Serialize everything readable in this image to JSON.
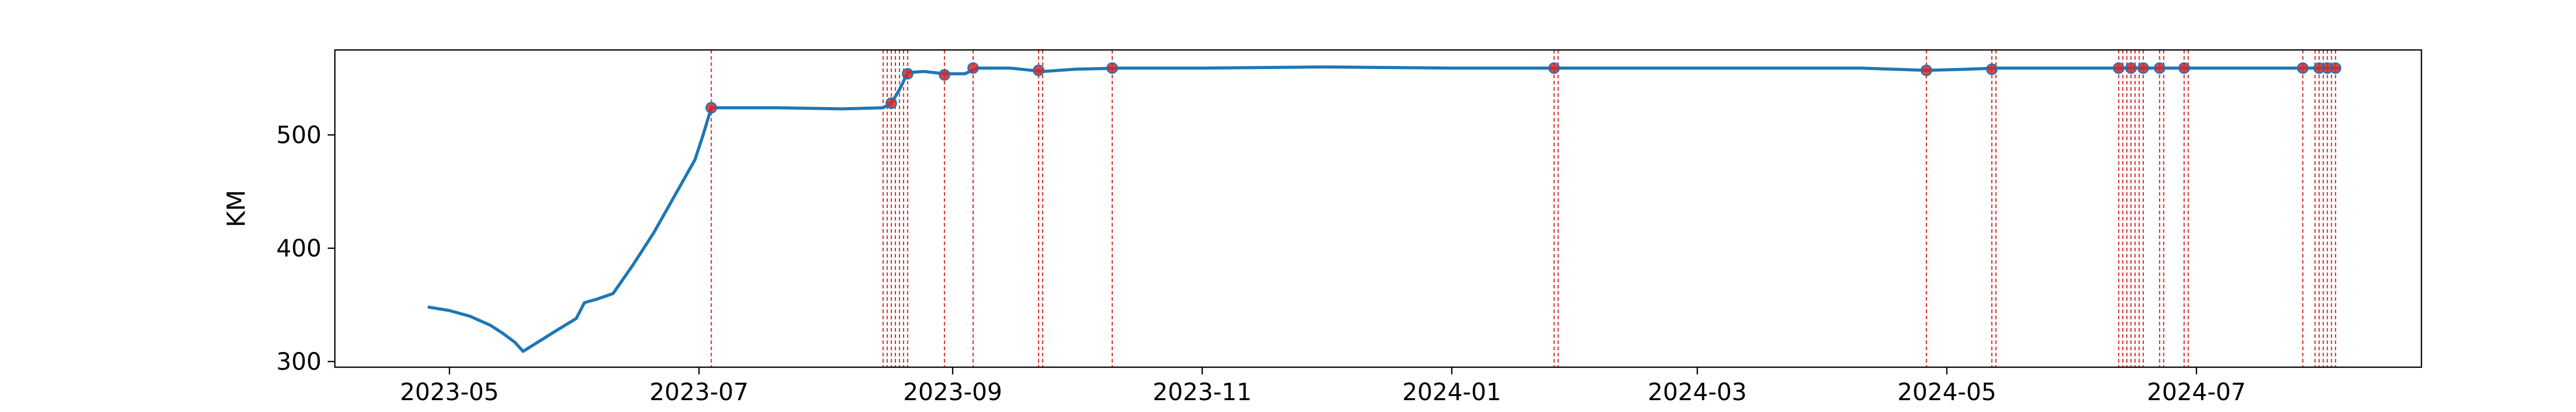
{
  "chart_data": {
    "type": "line",
    "title": "",
    "xlabel": "",
    "ylabel": "KM",
    "ylim": [
      295,
      575
    ],
    "xlim": [
      "2023-04-03",
      "2024-08-25"
    ],
    "grid": false,
    "legend": "none",
    "x_ticks": [
      "2023-05",
      "2023-07",
      "2023-09",
      "2023-11",
      "2024-01",
      "2024-03",
      "2024-05",
      "2024-07"
    ],
    "y_ticks": [
      300,
      400,
      500
    ],
    "colors": {
      "line": "#1f77b4",
      "events": "#d62728",
      "markers": "#d62728"
    },
    "series": [
      {
        "x": [
          "2023-04-26",
          "2023-05-01",
          "2023-05-06",
          "2023-05-11",
          "2023-05-14",
          "2023-05-17",
          "2023-05-19",
          "2023-05-23",
          "2023-05-27",
          "2023-06-01",
          "2023-06-03",
          "2023-06-06",
          "2023-06-10",
          "2023-06-15",
          "2023-06-20",
          "2023-06-25",
          "2023-06-30",
          "2023-07-02",
          "2023-07-04",
          "2023-07-20",
          "2023-08-05",
          "2023-08-15",
          "2023-08-17",
          "2023-08-19",
          "2023-08-21",
          "2023-08-25",
          "2023-08-30",
          "2023-09-04",
          "2023-09-07",
          "2023-09-15",
          "2023-09-23",
          "2023-10-01",
          "2023-10-12",
          "2023-11-01",
          "2023-12-01",
          "2024-01-01",
          "2024-01-27",
          "2024-02-15",
          "2024-03-15",
          "2024-04-10",
          "2024-04-26",
          "2024-05-06",
          "2024-05-13",
          "2024-06-01",
          "2024-06-13",
          "2024-06-18",
          "2024-06-22",
          "2024-06-29",
          "2024-07-15",
          "2024-07-29",
          "2024-08-02",
          "2024-08-05"
        ],
        "values": [
          348,
          345,
          340,
          332,
          325,
          317,
          309,
          318,
          327,
          338,
          352,
          355,
          360,
          386,
          414,
          446,
          478,
          500,
          524,
          524,
          523,
          524,
          528,
          540,
          555,
          556,
          554,
          554,
          559,
          559,
          556,
          558,
          559,
          559,
          560,
          559,
          559,
          559,
          559,
          559,
          557,
          558,
          559,
          559,
          559,
          559,
          559,
          559,
          559,
          559,
          559,
          559
        ]
      }
    ],
    "event_dates": [
      "2023-07-04",
      "2023-08-15",
      "2023-08-16",
      "2023-08-17",
      "2023-08-18",
      "2023-08-19",
      "2023-08-20",
      "2023-08-21",
      "2023-08-30",
      "2023-09-06",
      "2023-09-22",
      "2023-09-23",
      "2023-10-10",
      "2024-01-26",
      "2024-01-27",
      "2024-04-26",
      "2024-05-12",
      "2024-05-13",
      "2024-06-12",
      "2024-06-13",
      "2024-06-14",
      "2024-06-15",
      "2024-06-16",
      "2024-06-17",
      "2024-06-18",
      "2024-06-22",
      "2024-06-23",
      "2024-06-28",
      "2024-06-29",
      "2024-07-27",
      "2024-07-30",
      "2024-07-31",
      "2024-08-01",
      "2024-08-02",
      "2024-08-03",
      "2024-08-04"
    ],
    "markers": [
      {
        "x": "2023-07-04",
        "y": 524
      },
      {
        "x": "2023-08-17",
        "y": 528
      },
      {
        "x": "2023-08-21",
        "y": 554
      },
      {
        "x": "2023-08-30",
        "y": 553
      },
      {
        "x": "2023-09-06",
        "y": 559
      },
      {
        "x": "2023-09-22",
        "y": 557
      },
      {
        "x": "2023-10-10",
        "y": 559
      },
      {
        "x": "2024-01-26",
        "y": 559
      },
      {
        "x": "2024-04-26",
        "y": 557
      },
      {
        "x": "2024-05-12",
        "y": 558
      },
      {
        "x": "2024-06-12",
        "y": 559
      },
      {
        "x": "2024-06-15",
        "y": 559
      },
      {
        "x": "2024-06-18",
        "y": 559
      },
      {
        "x": "2024-06-22",
        "y": 559
      },
      {
        "x": "2024-06-28",
        "y": 559
      },
      {
        "x": "2024-07-27",
        "y": 559
      },
      {
        "x": "2024-07-31",
        "y": 559
      },
      {
        "x": "2024-08-02",
        "y": 559
      },
      {
        "x": "2024-08-04",
        "y": 559
      }
    ]
  }
}
